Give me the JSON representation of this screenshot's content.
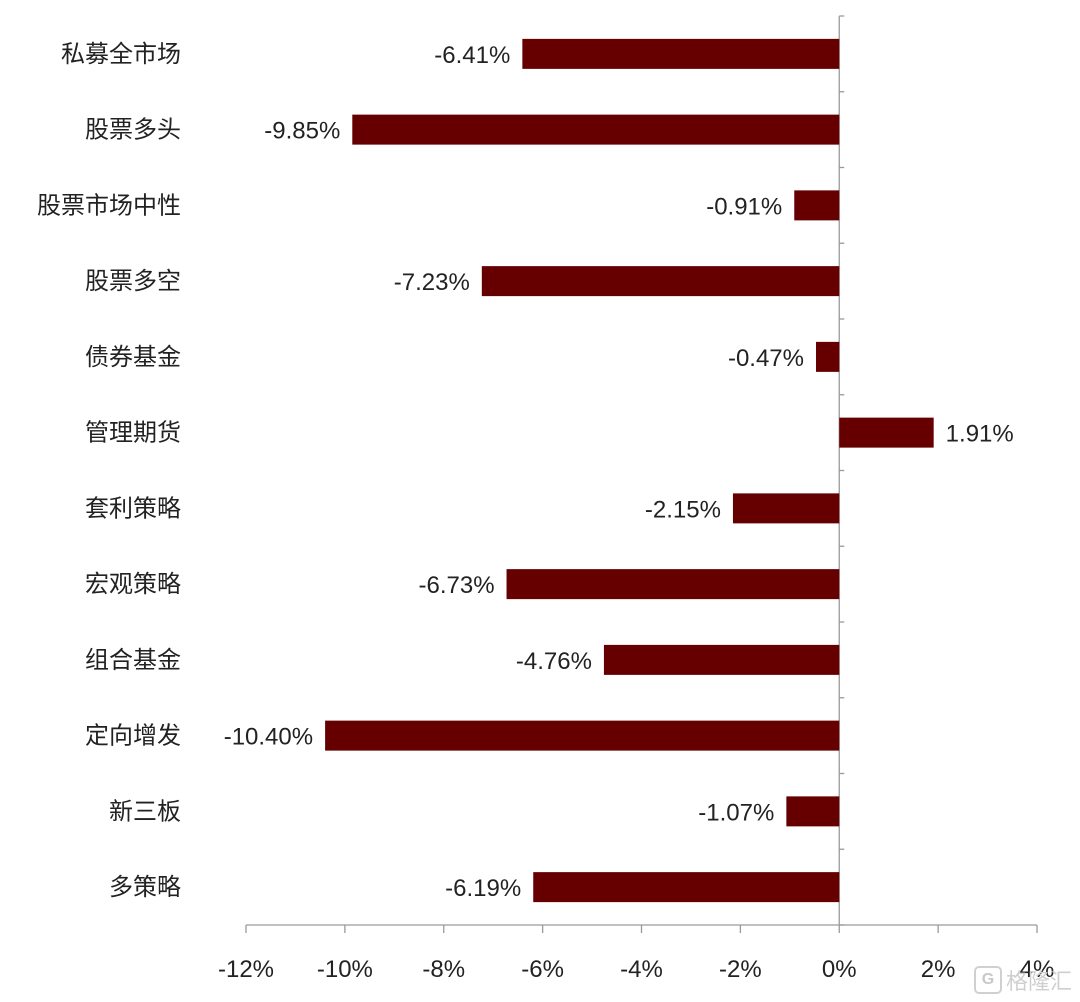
{
  "chart_data": {
    "type": "bar",
    "orientation": "horizontal",
    "categories": [
      "私募全市场",
      "股票多头",
      "股票市场中性",
      "股票多空",
      "债券基金",
      "管理期货",
      "套利策略",
      "宏观策略",
      "组合基金",
      "定向增发",
      "新三板",
      "多策略"
    ],
    "values": [
      -6.41,
      -9.85,
      -0.91,
      -7.23,
      -0.47,
      1.91,
      -2.15,
      -6.73,
      -4.76,
      -10.4,
      -1.07,
      -6.19
    ],
    "value_labels": [
      "-6.41%",
      "-9.85%",
      "-0.91%",
      "-7.23%",
      "-0.47%",
      "1.91%",
      "-2.15%",
      "-6.73%",
      "-4.76%",
      "-10.40%",
      "-1.07%",
      "-6.19%"
    ],
    "xlim": [
      -12,
      4
    ],
    "x_ticks": [
      -12,
      -10,
      -8,
      -6,
      -4,
      -2,
      0,
      2,
      4
    ],
    "x_tick_labels": [
      "-12%",
      "-10%",
      "-8%",
      "-6%",
      "-4%",
      "-2%",
      "0%",
      "2%",
      "4%"
    ],
    "bar_color": "#660000",
    "grid": false,
    "legend": "none",
    "title": "",
    "xlabel": "",
    "ylabel": ""
  },
  "watermark": {
    "icon": "G",
    "text": "格隆汇"
  }
}
